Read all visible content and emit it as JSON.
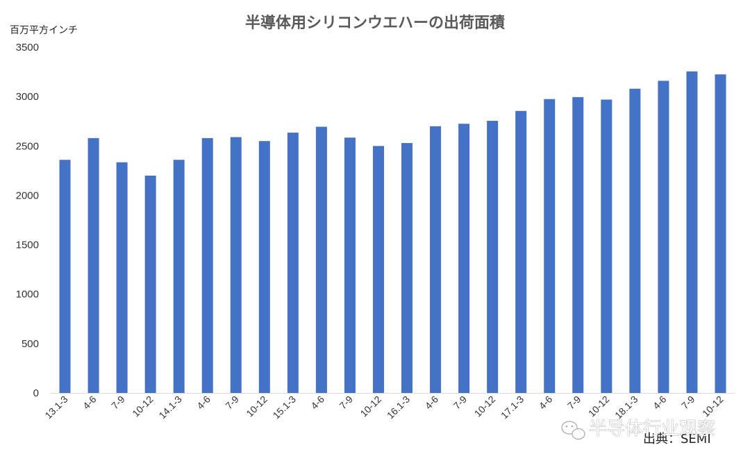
{
  "chart_data": {
    "type": "bar",
    "title": "半導体用シリコンウエハーの出荷面積",
    "ylabel": "百万平方インチ",
    "xlabel": "",
    "ylim": [
      0,
      3500
    ],
    "yticks": [
      0,
      500,
      1000,
      1500,
      2000,
      2500,
      3000,
      3500
    ],
    "categories": [
      "13.1-3",
      "4-6",
      "7-9",
      "10-12",
      "14.1-3",
      "4-6",
      "7-9",
      "10-12",
      "15.1-3",
      "4-6",
      "7-9",
      "10-12",
      "16.1-3",
      "4-6",
      "7-9",
      "10-12",
      "17.1-3",
      "4-6",
      "7-9",
      "10-12",
      "18.1-3",
      "4-6",
      "7-9",
      "10-12"
    ],
    "values": [
      2360,
      2580,
      2335,
      2200,
      2360,
      2580,
      2590,
      2550,
      2635,
      2695,
      2585,
      2500,
      2530,
      2700,
      2725,
      2755,
      2855,
      2975,
      2995,
      2970,
      3080,
      3160,
      3255,
      3225
    ],
    "grid": false,
    "legend": "none",
    "bar_color": "#4472C4"
  },
  "source_note": "出典：SEMI",
  "watermark": {
    "text": "半导体行业观察",
    "icon": "wechat-icon"
  }
}
